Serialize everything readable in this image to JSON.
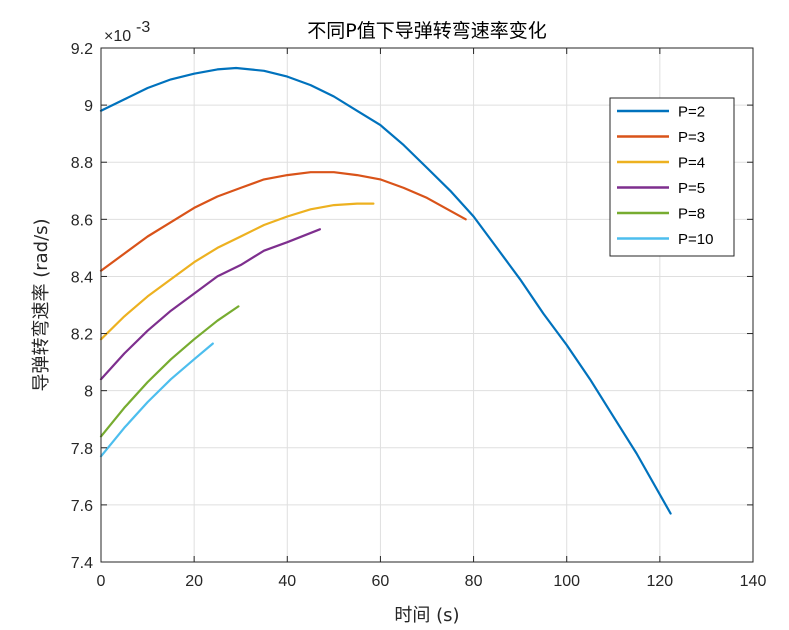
{
  "chart_data": {
    "type": "line",
    "title": "不同P值下导弹转弯速率变化",
    "xlabel": "时间 (s)",
    "ylabel": "导弹转弯速率 (rad/s)",
    "y_exponent_base": "×10",
    "y_exponent_power": "-3",
    "xlim": [
      0,
      140
    ],
    "ylim": [
      7.4,
      9.2
    ],
    "xticks": [
      0,
      20,
      40,
      60,
      80,
      100,
      120,
      140
    ],
    "yticks": [
      7.4,
      7.6,
      7.8,
      8.0,
      8.2,
      8.4,
      8.6,
      8.8,
      9.0,
      9.2
    ],
    "xtick_labels": [
      "0",
      "20",
      "40",
      "60",
      "80",
      "100",
      "120",
      "140"
    ],
    "ytick_labels": [
      "7.4",
      "7.6",
      "7.8",
      "8",
      "8.2",
      "8.4",
      "8.6",
      "8.8",
      "9",
      "9.2"
    ],
    "grid": true,
    "legend_position": "top-right",
    "series": [
      {
        "name": "P=2",
        "color": "#0072BD",
        "x": [
          0,
          5,
          10,
          15,
          20,
          25,
          29,
          35,
          40,
          45,
          50,
          55,
          60,
          65,
          70,
          75,
          80,
          85,
          90,
          95,
          100,
          105,
          110,
          115,
          122.3
        ],
        "y": [
          8.98,
          9.02,
          9.06,
          9.09,
          9.11,
          9.125,
          9.13,
          9.12,
          9.1,
          9.07,
          9.03,
          8.98,
          8.93,
          8.86,
          8.78,
          8.7,
          8.61,
          8.5,
          8.39,
          8.27,
          8.16,
          8.04,
          7.91,
          7.78,
          7.57
        ]
      },
      {
        "name": "P=3",
        "color": "#D95319",
        "x": [
          0,
          5,
          10,
          15,
          20,
          25,
          30,
          35,
          40,
          45,
          50,
          55,
          60,
          65,
          70,
          75,
          78.3
        ],
        "y": [
          8.42,
          8.48,
          8.54,
          8.59,
          8.64,
          8.68,
          8.71,
          8.74,
          8.755,
          8.765,
          8.765,
          8.755,
          8.74,
          8.71,
          8.675,
          8.63,
          8.6
        ]
      },
      {
        "name": "P=4",
        "color": "#EDB120",
        "x": [
          0,
          5,
          10,
          15,
          20,
          25,
          30,
          35,
          40,
          45,
          50,
          55,
          58.5
        ],
        "y": [
          8.18,
          8.26,
          8.33,
          8.39,
          8.45,
          8.5,
          8.54,
          8.58,
          8.61,
          8.635,
          8.65,
          8.655,
          8.655
        ]
      },
      {
        "name": "P=5",
        "color": "#7E2F8E",
        "x": [
          0,
          5,
          10,
          15,
          20,
          25,
          30,
          35,
          40,
          47
        ],
        "y": [
          8.04,
          8.13,
          8.21,
          8.28,
          8.34,
          8.4,
          8.44,
          8.49,
          8.52,
          8.565
        ]
      },
      {
        "name": "P=8",
        "color": "#77AC30",
        "x": [
          0,
          5,
          10,
          15,
          20,
          25,
          29.5
        ],
        "y": [
          7.84,
          7.94,
          8.03,
          8.11,
          8.18,
          8.245,
          8.295
        ]
      },
      {
        "name": "P=10",
        "color": "#4DBEEE",
        "x": [
          0,
          5,
          10,
          15,
          20,
          24
        ],
        "y": [
          7.77,
          7.87,
          7.96,
          8.04,
          8.11,
          8.165
        ]
      }
    ]
  }
}
